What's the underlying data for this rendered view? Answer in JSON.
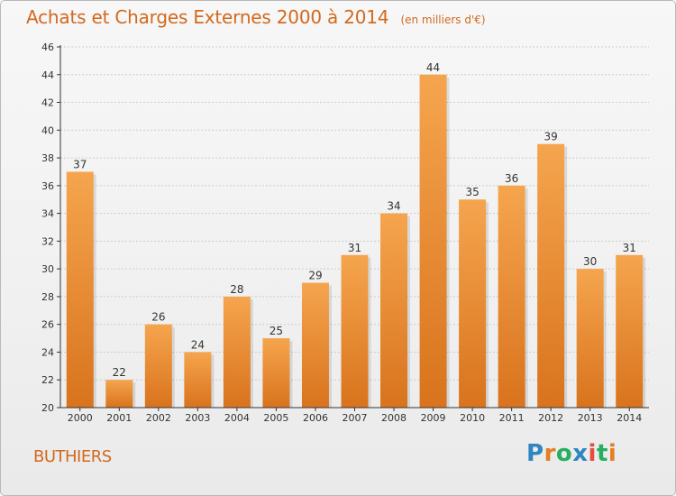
{
  "title": "Achats et Charges Externes 2000 à 2014",
  "subtitle": "(en milliers d'€)",
  "place_name": "BUTHIERS",
  "logo": {
    "text": "Proxiti",
    "letters": [
      {
        "ch": "P",
        "color": "#2e86c1"
      },
      {
        "ch": "r",
        "color": "#e67e22"
      },
      {
        "ch": "o",
        "color": "#27ae60"
      },
      {
        "ch": "x",
        "color": "#2e86c1"
      },
      {
        "ch": "i",
        "color": "#e74c3c"
      },
      {
        "ch": "t",
        "color": "#27ae60"
      },
      {
        "ch": "i",
        "color": "#e67e22"
      }
    ]
  },
  "colors": {
    "title": "#d2691e",
    "bar_light": "#f5a54e",
    "bar_dark": "#d9731d",
    "axis": "#333333",
    "grid": "#cccccc"
  },
  "chart_data": {
    "type": "bar",
    "title": "Achats et Charges Externes 2000 à 2014",
    "subtitle": "(en milliers d'€)",
    "xlabel": "",
    "ylabel": "",
    "categories": [
      "2000",
      "2001",
      "2002",
      "2003",
      "2004",
      "2005",
      "2006",
      "2007",
      "2008",
      "2009",
      "2010",
      "2011",
      "2012",
      "2013",
      "2014"
    ],
    "values": [
      37,
      22,
      26,
      24,
      28,
      25,
      29,
      31,
      34,
      44,
      35,
      36,
      39,
      30,
      31
    ],
    "ylim": [
      20,
      46
    ],
    "yticks": [
      20,
      22,
      24,
      26,
      28,
      30,
      32,
      34,
      36,
      38,
      40,
      42,
      44,
      46
    ],
    "grid": true,
    "data_labels": true
  }
}
